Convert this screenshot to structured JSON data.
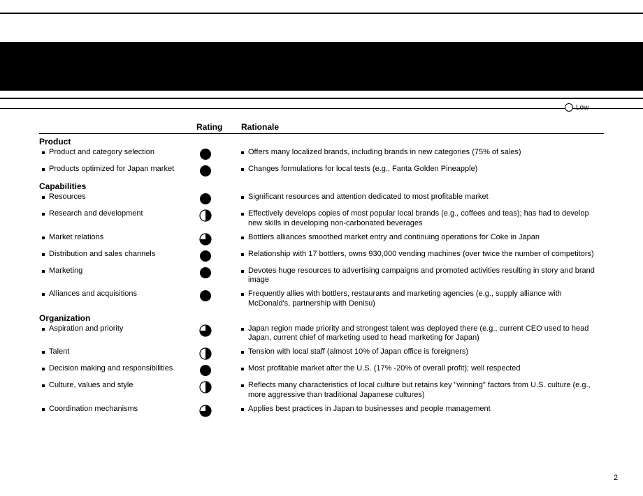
{
  "legend_label": "Low",
  "headers": {
    "rating": "Rating",
    "rationale": "Rationale"
  },
  "page_number": "2",
  "colors": {
    "ink": "#000000",
    "bg": "#ffffff"
  },
  "sections": [
    {
      "title": "Product",
      "rows": [
        {
          "label": "Product and category selection",
          "rating": 1.0,
          "rationale": "Offers many localized brands, including brands in new categories (75% of sales)"
        },
        {
          "label": "Products optimized for Japan market",
          "rating": 1.0,
          "rationale": "Changes formulations for local tests (e.g., Fanta Golden Pineapple)"
        }
      ]
    },
    {
      "title": "Capabilities",
      "rows": [
        {
          "label": "Resources",
          "rating": 1.0,
          "rationale": "Significant resources and attention dedicated to most profitable market"
        },
        {
          "label": "Research and development",
          "rating": 0.5,
          "rationale": "Effectively develops copies of most popular local brands (e.g., coffees and teas); has had to develop new skills in developing non-carbonated beverages"
        },
        {
          "label": "Market relations",
          "rating": 0.75,
          "rationale": "Bottlers alliances smoothed market entry and continuing operations for Coke in Japan"
        },
        {
          "label": "Distribution and sales channels",
          "rating": 1.0,
          "rationale": "Relationship with 17 bottlers, owns 930,000 vending machines (over twice the number of competitors)"
        },
        {
          "label": "Marketing",
          "rating": 1.0,
          "rationale": "Devotes huge resources to advertising campaigns and promoted activities resulting in story and brand image"
        },
        {
          "label": "Alliances and acquisitions",
          "rating": 1.0,
          "rationale": "Frequently allies with bottlers, restaurants and marketing agencies (e.g., supply alliance with McDonald's, partnership with Denisu)"
        }
      ]
    },
    {
      "title": "Organization",
      "rows": [
        {
          "label": "Aspiration and priority",
          "rating": 0.75,
          "rationale": "Japan region made priority and strongest talent was deployed there (e.g., current CEO used to head Japan, current chief of marketing used to head marketing for Japan)"
        },
        {
          "label": "Talent",
          "rating": 0.5,
          "rationale": "Tension with local staff (almost 10% of Japan office is foreigners)"
        },
        {
          "label": "Decision making and responsibilities",
          "rating": 1.0,
          "rationale": "Most profitable market after the U.S. (17% -20% of overall profit); well respected"
        },
        {
          "label": "Culture, values and style",
          "rating": 0.5,
          "rationale": "Reflects many characteristics of local culture but retains key \"winning\" factors from U.S. culture (e.g., more aggressive than traditional Japanese cultures)"
        },
        {
          "label": "Coordination mechanisms",
          "rating": 0.75,
          "rationale": "Applies best practices in Japan to businesses and people management"
        }
      ]
    }
  ]
}
